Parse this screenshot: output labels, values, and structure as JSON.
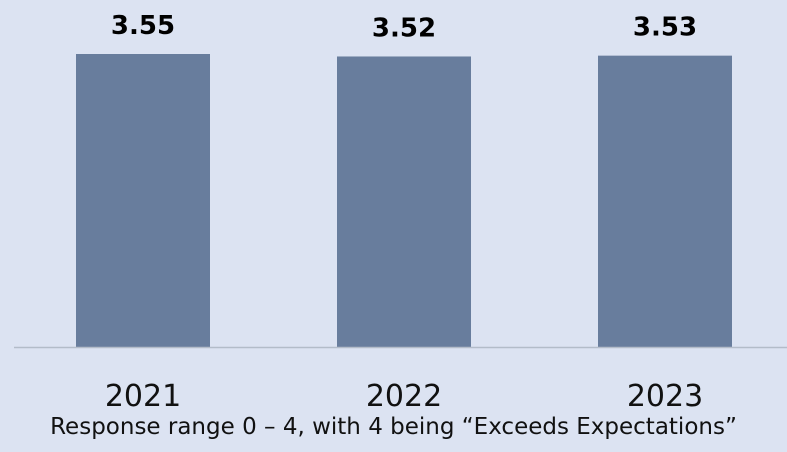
{
  "colors": {
    "background": "#dce3f2",
    "bar": "#687d9d",
    "axis": "#b3bcc9"
  },
  "chart_data": {
    "type": "bar",
    "categories": [
      "2021",
      "2022",
      "2023"
    ],
    "values": [
      3.55,
      3.52,
      3.53
    ],
    "data_labels": [
      "3.55",
      "3.52",
      "3.53"
    ],
    "ylim": [
      0,
      3.55
    ],
    "grid": false,
    "legend": "none"
  },
  "footnote": "Response range 0 – 4, with 4 being “Exceeds Expectations”"
}
